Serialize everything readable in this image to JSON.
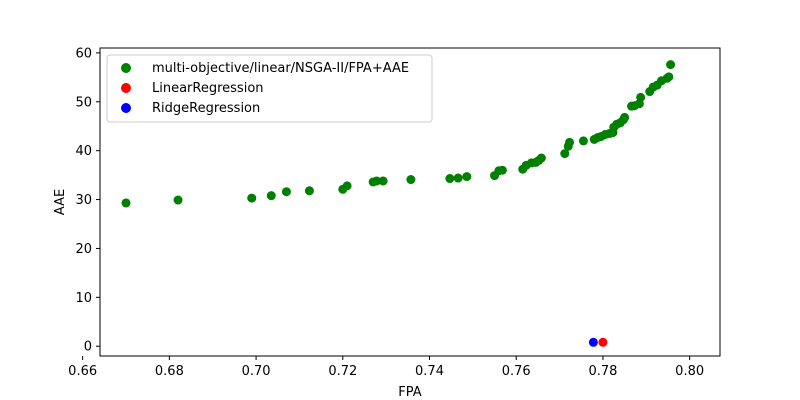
{
  "chart_data": {
    "type": "scatter",
    "title": "",
    "xlabel": "FPA",
    "ylabel": "AAE",
    "xlim": [
      0.664,
      0.807
    ],
    "ylim": [
      -2.0,
      61.0
    ],
    "xticks": [
      0.66,
      0.68,
      0.7,
      0.72,
      0.74,
      0.76,
      0.78,
      0.8
    ],
    "xtick_labels": [
      "0.66",
      "0.68",
      "0.70",
      "0.72",
      "0.74",
      "0.76",
      "0.78",
      "0.80"
    ],
    "yticks": [
      0,
      10,
      20,
      30,
      40,
      50,
      60
    ],
    "ytick_labels": [
      "0",
      "10",
      "20",
      "30",
      "40",
      "50",
      "60"
    ],
    "grid": false,
    "legend_position": "top-left",
    "series": [
      {
        "name": "multi-objective/linear/NSGA-II/FPA+AAE",
        "color": "#008000",
        "points": [
          [
            0.67,
            29.3
          ],
          [
            0.682,
            29.9
          ],
          [
            0.699,
            30.3
          ],
          [
            0.7035,
            30.8
          ],
          [
            0.707,
            31.6
          ],
          [
            0.7123,
            31.8
          ],
          [
            0.72,
            32.1
          ],
          [
            0.721,
            32.8
          ],
          [
            0.727,
            33.6
          ],
          [
            0.7278,
            33.8
          ],
          [
            0.7293,
            33.8
          ],
          [
            0.7357,
            34.1
          ],
          [
            0.7447,
            34.3
          ],
          [
            0.7466,
            34.4
          ],
          [
            0.7486,
            34.7
          ],
          [
            0.755,
            34.9
          ],
          [
            0.756,
            35.9
          ],
          [
            0.7568,
            36.0
          ],
          [
            0.7615,
            36.2
          ],
          [
            0.7623,
            37.0
          ],
          [
            0.7635,
            37.5
          ],
          [
            0.7645,
            37.6
          ],
          [
            0.7652,
            38.0
          ],
          [
            0.7658,
            38.5
          ],
          [
            0.7712,
            39.4
          ],
          [
            0.772,
            40.9
          ],
          [
            0.7723,
            41.7
          ],
          [
            0.7755,
            42.0
          ],
          [
            0.778,
            42.3
          ],
          [
            0.7788,
            42.7
          ],
          [
            0.7796,
            42.9
          ],
          [
            0.7805,
            43.3
          ],
          [
            0.7815,
            43.5
          ],
          [
            0.7823,
            43.7
          ],
          [
            0.7825,
            44.8
          ],
          [
            0.7832,
            45.4
          ],
          [
            0.784,
            45.7
          ],
          [
            0.7847,
            46.3
          ],
          [
            0.785,
            46.8
          ],
          [
            0.7866,
            49.1
          ],
          [
            0.7873,
            49.2
          ],
          [
            0.7884,
            49.6
          ],
          [
            0.7887,
            50.9
          ],
          [
            0.7908,
            52.1
          ],
          [
            0.7916,
            53.0
          ],
          [
            0.7925,
            53.4
          ],
          [
            0.7935,
            54.3
          ],
          [
            0.7948,
            54.8
          ],
          [
            0.7952,
            55.1
          ],
          [
            0.7956,
            57.6
          ]
        ]
      },
      {
        "name": "LinearRegression",
        "color": "#ff0000",
        "points": [
          [
            0.78,
            0.8
          ]
        ]
      },
      {
        "name": "RidgeRegression",
        "color": "#0000ff",
        "points": [
          [
            0.7778,
            0.8
          ]
        ]
      }
    ]
  }
}
